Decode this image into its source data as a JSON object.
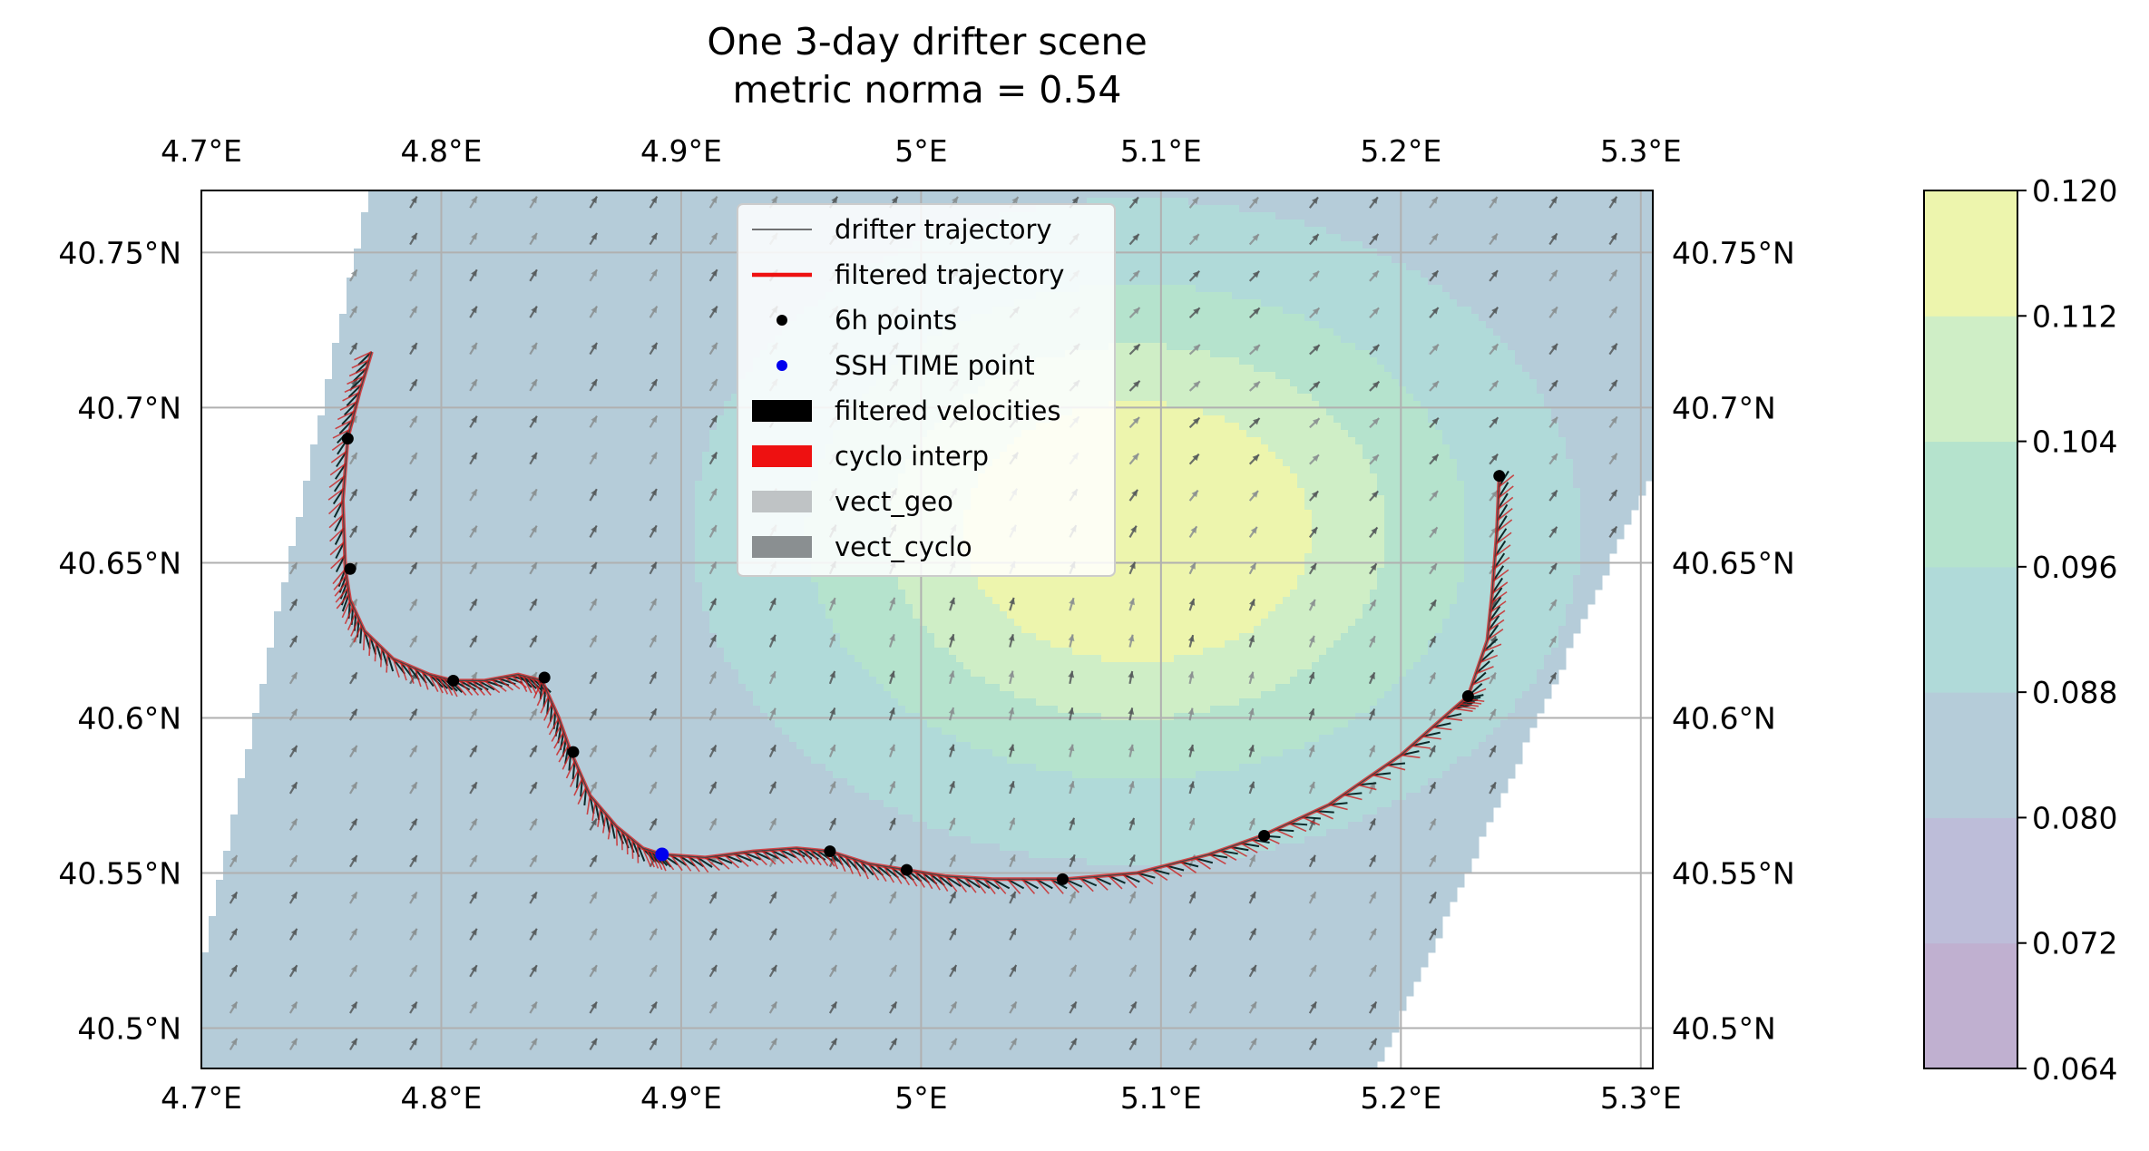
{
  "chart_data": {
    "type": "contour",
    "title": "One 3-day drifter scene",
    "subtitle": "metric norma = 0.54",
    "xlim": [
      4.7,
      5.305
    ],
    "ylim": [
      40.487,
      40.77
    ],
    "x_ticks": [
      4.7,
      4.8,
      4.9,
      5.0,
      5.1,
      5.2,
      5.3
    ],
    "x_tick_labels": [
      "4.7°E",
      "4.8°E",
      "4.9°E",
      "5°E",
      "5.1°E",
      "5.2°E",
      "5.3°E"
    ],
    "y_ticks": [
      40.5,
      40.55,
      40.6,
      40.65,
      40.7,
      40.75
    ],
    "y_tick_labels": [
      "40.5°N",
      "40.55°N",
      "40.6°N",
      "40.65°N",
      "40.7°N",
      "40.75°N"
    ],
    "grid": true,
    "colorbar": {
      "levels": [
        0.064,
        0.072,
        0.08,
        0.088,
        0.096,
        0.104,
        0.112,
        0.12
      ],
      "tick_labels": [
        "0.064",
        "0.072",
        "0.080",
        "0.088",
        "0.096",
        "0.104",
        "0.112",
        "0.120"
      ],
      "colors": [
        "#c0b0d0",
        "#bdbdd9",
        "#b5ccd9",
        "#b0dad9",
        "#b5e3cd",
        "#cfeec6",
        "#edf5ad"
      ]
    },
    "ssh_field": {
      "eddy_center": [
        5.09,
        40.66
      ],
      "eddy_radius": [
        0.095,
        0.055
      ],
      "eddy_amplitude": 0.04,
      "background_level": 0.082,
      "swath_west_edge": [
        [
          4.7,
          40.52
        ],
        [
          4.77,
          40.77
        ]
      ],
      "swath_east_edge": [
        [
          5.19,
          40.487
        ],
        [
          5.305,
          40.68
        ]
      ]
    },
    "legend": {
      "location": "upper center",
      "entries": [
        {
          "label": "drifter trajectory",
          "kind": "thin-line",
          "color": "#444444"
        },
        {
          "label": "filtered trajectory",
          "kind": "line",
          "color": "#ee1111"
        },
        {
          "label": "6h points",
          "kind": "dot",
          "color": "#000000"
        },
        {
          "label": "SSH TIME point",
          "kind": "dot",
          "color": "#0000ee"
        },
        {
          "label": "filtered velocities",
          "kind": "patch",
          "color": "#000000"
        },
        {
          "label": "cyclo interp",
          "kind": "patch",
          "color": "#ee1111"
        },
        {
          "label": "vect_geo",
          "kind": "patch",
          "color": "#bfc3c5"
        },
        {
          "label": "vect_cyclo",
          "kind": "patch",
          "color": "#8a8f91"
        }
      ]
    },
    "series": [
      {
        "name": "filtered trajectory",
        "x": [
          4.771,
          4.766,
          4.761,
          4.759,
          4.76,
          4.762,
          4.768,
          4.78,
          4.795,
          4.805,
          4.818,
          4.832,
          4.842,
          4.849,
          4.854,
          4.862,
          4.873,
          4.884,
          4.892,
          4.91,
          4.93,
          4.948,
          4.962,
          4.978,
          4.994,
          5.01,
          5.03,
          5.06,
          5.09,
          5.12,
          5.142,
          5.17,
          5.2,
          5.222,
          5.228,
          5.236,
          5.238,
          5.24,
          5.241
        ],
        "y": [
          40.718,
          40.705,
          40.69,
          40.67,
          40.648,
          40.638,
          40.628,
          40.619,
          40.614,
          40.612,
          40.612,
          40.614,
          40.612,
          40.6,
          40.589,
          40.575,
          40.565,
          40.558,
          40.556,
          40.555,
          40.557,
          40.558,
          40.557,
          40.553,
          40.551,
          40.549,
          40.548,
          40.548,
          40.55,
          40.556,
          40.562,
          40.572,
          40.588,
          40.603,
          40.607,
          40.625,
          40.64,
          40.66,
          40.678
        ]
      },
      {
        "name": "6h points",
        "x": [
          4.761,
          4.762,
          4.805,
          4.843,
          4.855,
          4.962,
          4.994,
          5.059,
          5.143,
          5.228,
          5.241
        ],
        "y": [
          40.69,
          40.648,
          40.612,
          40.613,
          40.589,
          40.557,
          40.551,
          40.548,
          40.562,
          40.607,
          40.678
        ]
      },
      {
        "name": "SSH TIME point",
        "x": [
          4.892
        ],
        "y": [
          40.556
        ]
      }
    ]
  }
}
